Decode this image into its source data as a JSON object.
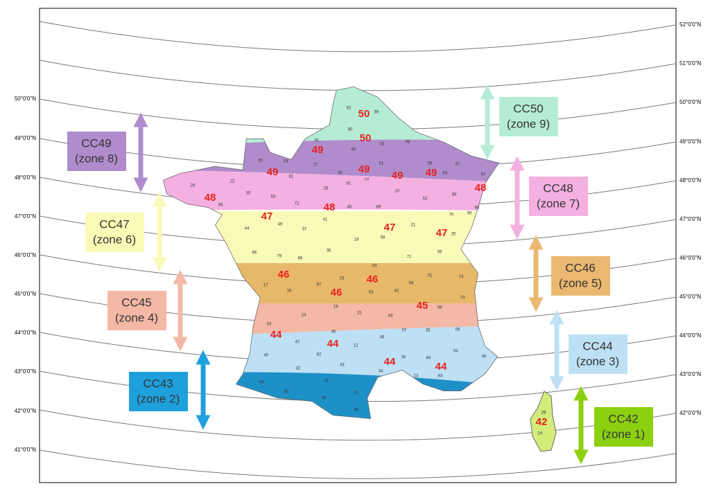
{
  "latitude_labels_left": [
    "50°0'0\"N",
    "49°0'0\"N",
    "48°0'0\"N",
    "47°0'0\"N",
    "46°0'0\"N",
    "45°0'0\"N",
    "44°0'0\"N",
    "43°0'0\"N",
    "42°0'0\"N",
    "41°0'0\"N"
  ],
  "latitude_labels_right": [
    "52°0'0\"N",
    "51°0'0\"N",
    "50°0'0\"N",
    "49°0'0\"N",
    "48°0'0\"N",
    "47°0'0\"N",
    "46°0'0\"N",
    "45°0'0\"N",
    "44°0'0\"N",
    "43°0'0\"N",
    "42°0'0\"N"
  ],
  "zones": [
    {
      "code": "CC49",
      "zone": "(zone 8)"
    },
    {
      "code": "CC47",
      "zone": "(zone 6)"
    },
    {
      "code": "CC45",
      "zone": "(zone 4)"
    },
    {
      "code": "CC43",
      "zone": "(zone 2)"
    },
    {
      "code": "CC50",
      "zone": "(zone 9)"
    },
    {
      "code": "CC48",
      "zone": "(zone 7)"
    },
    {
      "code": "CC46",
      "zone": "(zone 5)"
    },
    {
      "code": "CC44",
      "zone": "(zone 3)"
    },
    {
      "code": "CC42",
      "zone": "(zone 1)"
    }
  ],
  "zone_numbers": [
    "50",
    "50",
    "49",
    "49",
    "49",
    "49",
    "49",
    "48",
    "48",
    "48",
    "47",
    "47",
    "47",
    "46",
    "46",
    "46",
    "45",
    "44",
    "44",
    "44",
    "44",
    "42"
  ],
  "departments": [
    "62",
    "59",
    "80",
    "02",
    "60",
    "08",
    "76",
    "27",
    "14",
    "50",
    "61",
    "28",
    "78",
    "91",
    "77",
    "51",
    "10",
    "52",
    "55",
    "54",
    "57",
    "67",
    "88",
    "68",
    "90",
    "70",
    "25",
    "29",
    "22",
    "35",
    "56",
    "53",
    "72",
    "45",
    "41",
    "89",
    "44",
    "49",
    "37",
    "18",
    "58",
    "21",
    "36",
    "86",
    "79",
    "85",
    "71",
    "39",
    "17",
    "16",
    "87",
    "23",
    "03",
    "63",
    "19",
    "42",
    "69",
    "01",
    "74",
    "73",
    "38",
    "15",
    "43",
    "24",
    "33",
    "46",
    "07",
    "26",
    "05",
    "47",
    "12",
    "48",
    "04",
    "06",
    "40",
    "82",
    "81",
    "30",
    "84",
    "32",
    "34",
    "13",
    "83",
    "64",
    "65",
    "31",
    "09",
    "11",
    "66",
    "2B",
    "2A"
  ]
}
